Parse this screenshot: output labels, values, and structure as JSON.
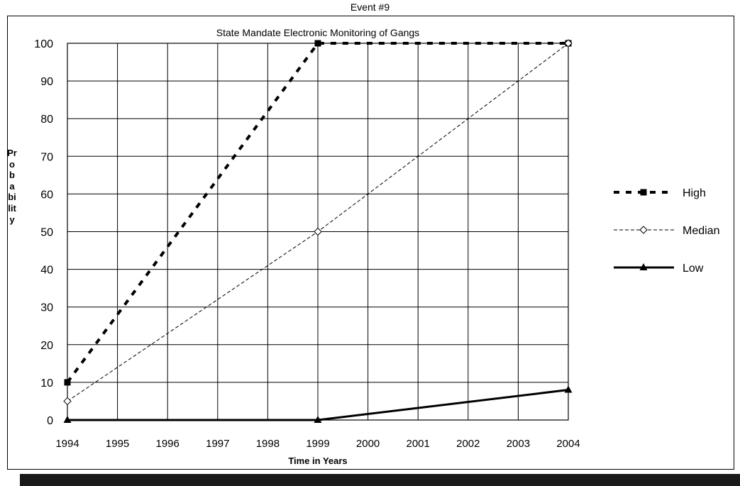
{
  "header": {
    "event_label": "Event #9"
  },
  "chart_data": {
    "type": "line",
    "title": "State Mandate Electronic Monitoring of Gangs",
    "xlabel": "Time in Years",
    "ylabel": "Probability",
    "x": [
      1994,
      1995,
      1996,
      1997,
      1998,
      1999,
      2000,
      2001,
      2002,
      2003,
      2004
    ],
    "xlim": [
      1994,
      2004
    ],
    "ylim": [
      0,
      100
    ],
    "yticks": [
      0,
      10,
      20,
      30,
      40,
      50,
      60,
      70,
      80,
      90,
      100
    ],
    "grid": true,
    "legend_position": "right",
    "series": [
      {
        "name": "High",
        "style": "bold-dashed",
        "marker": "square",
        "color": "#000000",
        "points": [
          [
            1994,
            10
          ],
          [
            1999,
            100
          ],
          [
            2004,
            100
          ]
        ]
      },
      {
        "name": "Median",
        "style": "thin-dashed",
        "marker": "diamond-open",
        "color": "#000000",
        "points": [
          [
            1994,
            5
          ],
          [
            1999,
            50
          ],
          [
            2004,
            100
          ]
        ]
      },
      {
        "name": "Low",
        "style": "solid",
        "marker": "triangle",
        "color": "#000000",
        "points": [
          [
            1994,
            0
          ],
          [
            1999,
            0
          ],
          [
            2004,
            8
          ]
        ]
      }
    ]
  }
}
